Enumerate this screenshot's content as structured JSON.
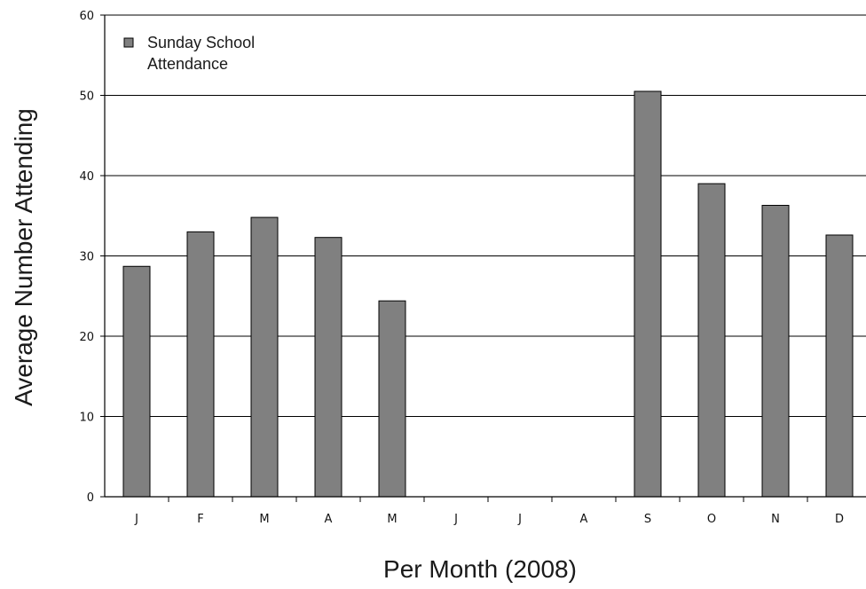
{
  "chart_data": {
    "type": "bar",
    "categories": [
      "J",
      "F",
      "M",
      "A",
      "M",
      "J",
      "J",
      "A",
      "S",
      "O",
      "N",
      "D"
    ],
    "series": [
      {
        "name": "Sunday School Attendance",
        "values": [
          28.7,
          33.0,
          34.8,
          32.3,
          24.4,
          0,
          0,
          0,
          50.5,
          39.0,
          36.3,
          32.6
        ]
      }
    ],
    "xlabel": "Per Month (2008)",
    "ylabel": "Average Number Attending",
    "ylim": [
      0,
      60
    ],
    "yticks": [
      0,
      10,
      20,
      30,
      40,
      50,
      60
    ],
    "grid": true,
    "legend": {
      "position": "top-left",
      "lines": [
        "Sunday School",
        "Attendance"
      ]
    },
    "bar_color": "#808080",
    "bar_border_color": "#000000",
    "gridline_color": "#000000"
  }
}
